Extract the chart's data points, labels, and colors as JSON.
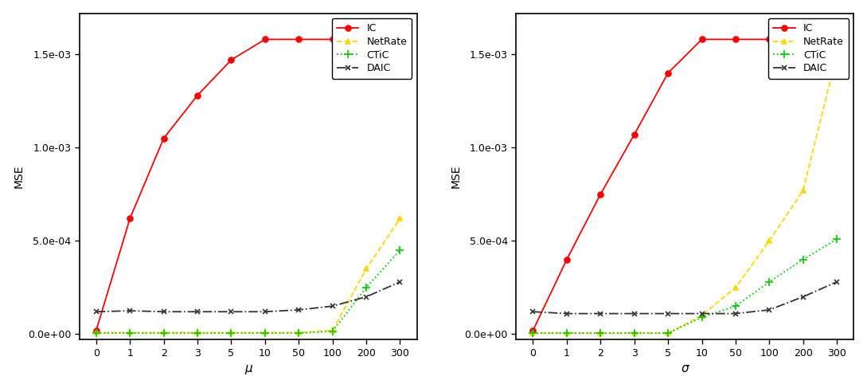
{
  "left": {
    "xlabel": "μ",
    "ylabel": "MSE",
    "x_ticks": [
      0,
      1,
      2,
      3,
      5,
      10,
      50,
      100,
      200,
      300
    ],
    "IC": [
      2e-05,
      0.00062,
      0.00105,
      0.00128,
      0.00147,
      0.00158,
      0.00158,
      0.00158,
      0.00158,
      0.00158
    ],
    "NetRate": [
      8e-06,
      8e-06,
      8e-06,
      8e-06,
      8e-06,
      8e-06,
      8e-06,
      2e-05,
      0.00035,
      0.00062
    ],
    "CTiC": [
      5e-06,
      5e-06,
      5e-06,
      5e-06,
      5e-06,
      5e-06,
      5e-06,
      1.5e-05,
      0.00025,
      0.00045
    ],
    "DAIC": [
      0.00012,
      0.000125,
      0.00012,
      0.00012,
      0.00012,
      0.00012,
      0.00013,
      0.00015,
      0.0002,
      0.00028
    ],
    "ylim": [
      -3e-05,
      0.00172
    ],
    "yticks": [
      0.0,
      0.0005,
      0.001,
      0.0015
    ],
    "ytick_labels": [
      "0.0e+00",
      "5.0e-04",
      "1.0e-03",
      "1.5e-03"
    ]
  },
  "right": {
    "xlabel": "σ",
    "ylabel": "MSE",
    "x_ticks": [
      0,
      1,
      2,
      3,
      5,
      10,
      50,
      100,
      200,
      300
    ],
    "IC": [
      2e-05,
      0.0004,
      0.00075,
      0.00107,
      0.0014,
      0.00158,
      0.00158,
      0.00158,
      0.00158,
      0.00158
    ],
    "NetRate": [
      5e-06,
      5e-06,
      5e-06,
      5e-06,
      5e-06,
      0.0001,
      0.00025,
      0.0005,
      0.00077,
      0.0015
    ],
    "CTiC": [
      5e-06,
      5e-06,
      5e-06,
      5e-06,
      5e-06,
      9e-05,
      0.00015,
      0.00028,
      0.0004,
      0.00051
    ],
    "DAIC": [
      0.00012,
      0.00011,
      0.00011,
      0.00011,
      0.00011,
      0.00011,
      0.00011,
      0.00013,
      0.0002,
      0.00028
    ],
    "ylim": [
      -3e-05,
      0.00172
    ],
    "yticks": [
      0.0,
      0.0005,
      0.001,
      0.0015
    ],
    "ytick_labels": [
      "0.0e+00",
      "5.0e-04",
      "1.0e-03",
      "1.5e-03"
    ]
  },
  "colors": {
    "IC": "#FF0000",
    "NetRate": "#FFD700",
    "CTiC": "#00CC00",
    "DAIC": "#333333"
  },
  "markers": {
    "IC": "o",
    "NetRate": "^",
    "CTiC": "+",
    "DAIC": "x"
  },
  "linestyles": {
    "IC": "-",
    "NetRate": "--",
    "CTiC": ":",
    "DAIC": "-."
  },
  "bg_color": "#FFFFFF",
  "legend_labels": [
    "IC",
    "NetRate",
    "CTiC",
    "DAIC"
  ]
}
